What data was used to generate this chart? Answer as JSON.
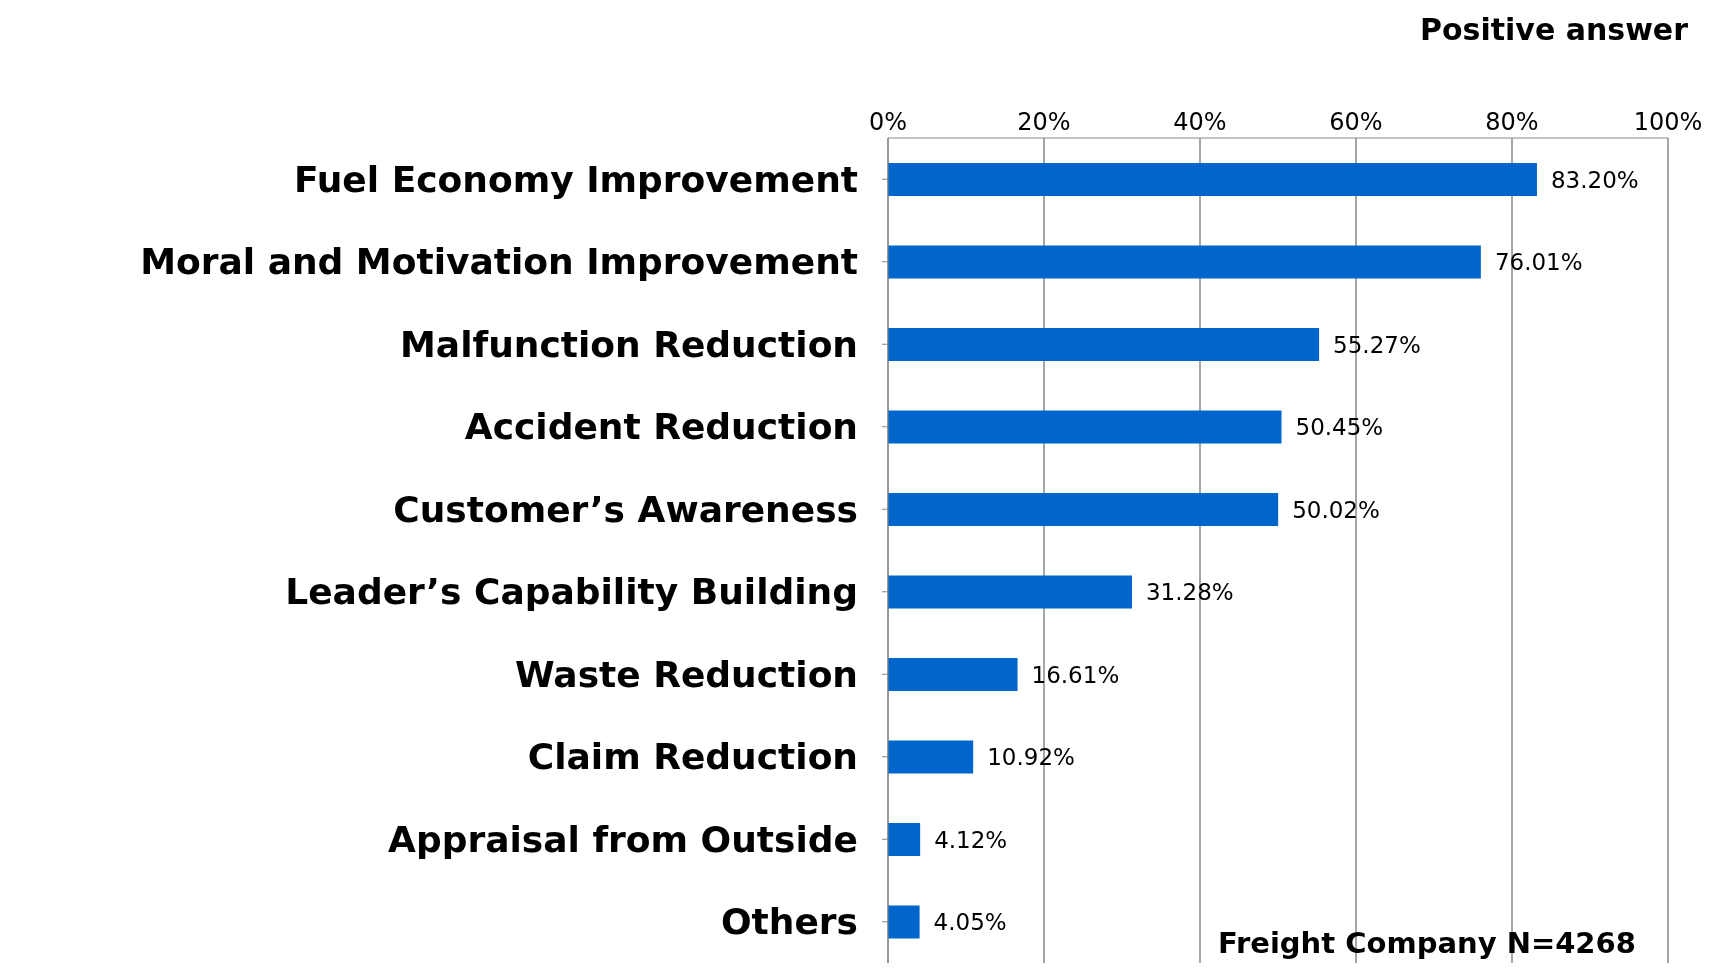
{
  "chart_data": {
    "type": "bar",
    "orientation": "horizontal",
    "xlabel": "Positive answer",
    "categories": [
      "Fuel Economy Improvement",
      "Moral and Motivation Improvement",
      "Malfunction Reduction",
      "Accident Reduction",
      "Customer’s Awareness",
      "Leader’s Capability Building",
      "Waste Reduction",
      "Claim Reduction",
      "Appraisal from Outside",
      "Others"
    ],
    "values": [
      83.2,
      76.01,
      55.27,
      50.45,
      50.02,
      31.28,
      16.61,
      10.92,
      4.12,
      4.05
    ],
    "value_labels": [
      "83.20%",
      "76.01%",
      "55.27%",
      "50.45%",
      "50.02%",
      "31.28%",
      "16.61%",
      "10.92%",
      "4.12%",
      "4.05%"
    ],
    "color": "#0066cc",
    "xlim": [
      0,
      100
    ],
    "xticks": [
      {
        "value": 0,
        "label": "0%"
      },
      {
        "value": 20,
        "label": "20%"
      },
      {
        "value": 40,
        "label": "40%"
      },
      {
        "value": 60,
        "label": "60%"
      },
      {
        "value": 80,
        "label": "80%"
      },
      {
        "value": 100,
        "label": "100%"
      }
    ],
    "grid": "x",
    "annotations": [
      "Freight Company N=4268"
    ]
  }
}
